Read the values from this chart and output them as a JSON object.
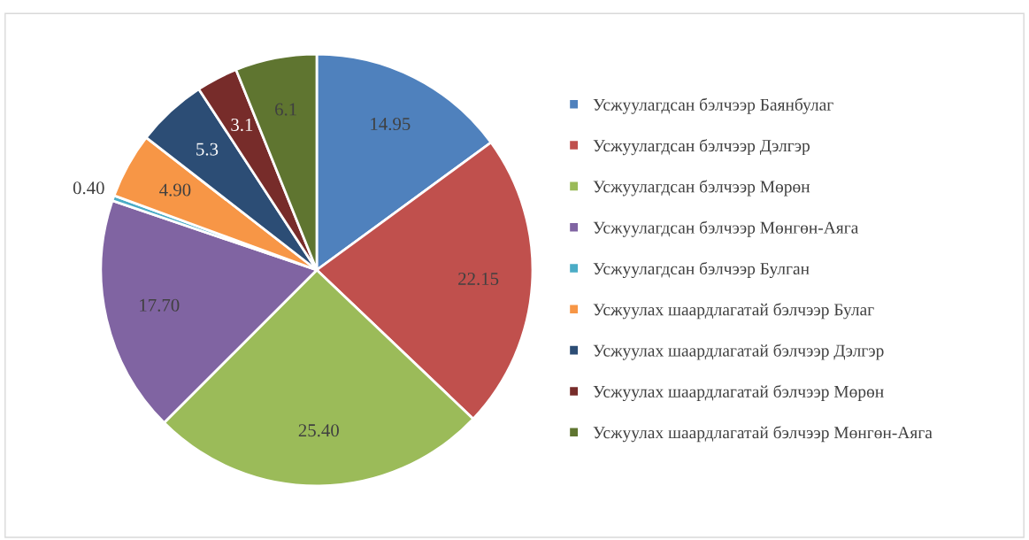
{
  "chart_data": {
    "type": "pie",
    "categories": [
      "Усжуулагдсан бэлчээр Баянбулаг",
      "Усжуулагдсан бэлчээр Дэлгэр",
      "Усжуулагдсан бэлчээр Мөрөн",
      "Усжуулагдсан бэлчээр Мөнгөн-Аяга",
      "Усжуулагдсан бэлчээр Булган",
      "Усжуулах шаардлагатай бэлчээр Булаг",
      "Усжуулах шаардлагатай бэлчээр Дэлгэр",
      "Усжуулах шаардлагатай бэлчээр Мөрөн",
      "Усжуулах шаардлагатай бэлчээр Мөнгөн-Аяга"
    ],
    "values": [
      14.95,
      22.15,
      25.4,
      17.7,
      0.4,
      4.9,
      5.3,
      3.1,
      6.1
    ],
    "value_labels": [
      "14.95",
      "22.15",
      "25.40",
      "17.70",
      "0.40",
      "4.90",
      "5.3",
      "3.1",
      "6.1"
    ],
    "colors": [
      "#4f81bd",
      "#c0504d",
      "#9bbb59",
      "#8064a2",
      "#4bacc6",
      "#f79646",
      "#2c4d75",
      "#772c2a",
      "#5f7530"
    ],
    "legend": "right"
  }
}
